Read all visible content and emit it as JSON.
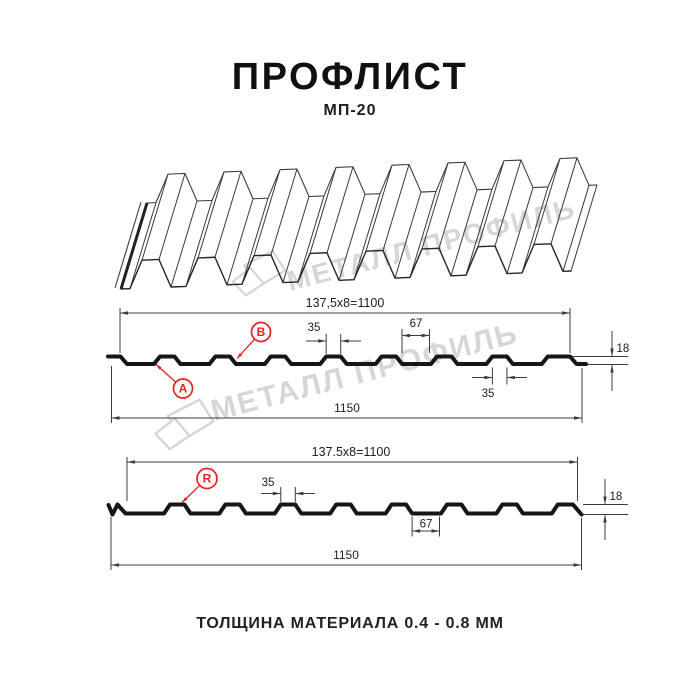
{
  "page": {
    "title": "ПРОФЛИСТ",
    "subtitle": "МП-20",
    "footer": "ТОЛЩИНА МАТЕРИАЛА 0.4 - 0.8 ММ"
  },
  "watermark": {
    "text": "МЕТАЛЛ ПРОФИЛЬ",
    "logo": "metall-profil-crystal-logo",
    "color": "#d6d6d6"
  },
  "colors": {
    "ink": "#161616",
    "dim": "#3c3c3c",
    "text": "#1d1d1d",
    "accent_red": "#e8211f",
    "background": "#ffffff"
  },
  "drawing_top": {
    "type": "3d-perspective-view-of-profiled-sheet"
  },
  "drawing_middle": {
    "description": "cross-section side A/B",
    "dim_labels": {
      "module_width": "137,5x8=1100",
      "rib_top_width": "35",
      "rib_spacing": "67",
      "profile_height": "18",
      "rib_bottom_width": "35",
      "overall_width": "1150"
    },
    "point_labels": [
      "A",
      "B"
    ]
  },
  "drawing_bottom": {
    "description": "cross-section side R",
    "dim_labels": {
      "module_width": "137.5x8=1100",
      "rib_top_width": "35",
      "rib_spacing": "67",
      "profile_height": "18",
      "overall_width": "1150"
    },
    "point_labels": [
      "R"
    ]
  }
}
